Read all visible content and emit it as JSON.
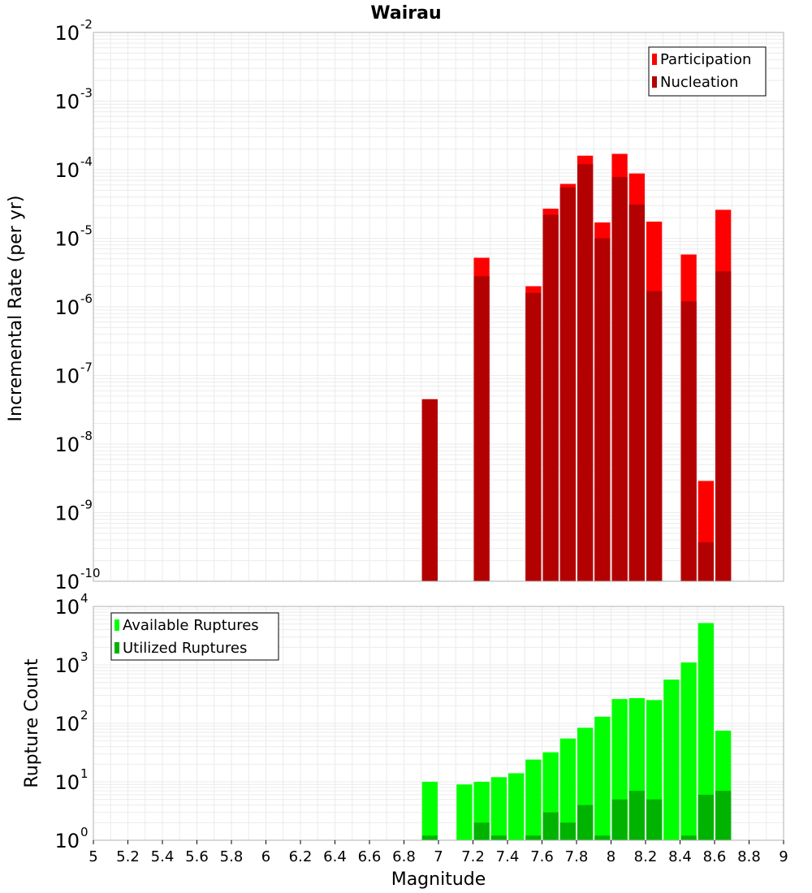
{
  "colors": {
    "participation": "#ff0000",
    "nucleation": "#b30000",
    "available": "#00ff00",
    "utilized": "#00b300",
    "grid": "#ebebeb",
    "frame": "#b0b0b0"
  },
  "chart_data": [
    {
      "type": "bar",
      "title": "Wairau",
      "xlabel": "",
      "ylabel": "Incremental Rate (per yr)",
      "yscale": "log",
      "ylim": [
        1e-10,
        0.01
      ],
      "xlim": [
        5,
        9
      ],
      "bin_width": 0.1,
      "grid": true,
      "legend_position": "top-right",
      "y_ticks": [
        {
          "base": "10",
          "exp": "-10"
        },
        {
          "base": "10",
          "exp": "-9"
        },
        {
          "base": "10",
          "exp": "-8"
        },
        {
          "base": "10",
          "exp": "-7"
        },
        {
          "base": "10",
          "exp": "-6"
        },
        {
          "base": "10",
          "exp": "-5"
        },
        {
          "base": "10",
          "exp": "-4"
        },
        {
          "base": "10",
          "exp": "-3"
        },
        {
          "base": "10",
          "exp": "-2"
        }
      ],
      "series": [
        {
          "name": "Participation",
          "x": [
            6.95,
            7.25,
            7.55,
            7.65,
            7.75,
            7.85,
            7.95,
            8.05,
            8.15,
            8.25,
            8.45,
            8.55,
            8.65
          ],
          "values": [
            4.5e-08,
            5.2e-06,
            2e-06,
            2.7e-05,
            6.2e-05,
            0.00016,
            1.7e-05,
            0.00017,
            8.8e-05,
            1.75e-05,
            5.8e-06,
            2.9e-09,
            2.6e-05
          ]
        },
        {
          "name": "Nucleation",
          "x": [
            6.95,
            7.25,
            7.55,
            7.65,
            7.75,
            7.85,
            7.95,
            8.05,
            8.15,
            8.25,
            8.45,
            8.55,
            8.65
          ],
          "values": [
            4.5e-08,
            2.8e-06,
            1.6e-06,
            2.2e-05,
            5.5e-05,
            0.00012,
            1e-05,
            7.8e-05,
            3.1e-05,
            1.7e-06,
            1.2e-06,
            3.7e-10,
            3.3e-06
          ]
        }
      ]
    },
    {
      "type": "bar",
      "title": "",
      "xlabel": "Magnitude",
      "ylabel": "Rupture Count",
      "yscale": "log",
      "ylim": [
        1,
        10000
      ],
      "xlim": [
        5,
        9
      ],
      "bin_width": 0.1,
      "grid": true,
      "legend_position": "top-left",
      "y_ticks": [
        {
          "base": "10",
          "exp": "0"
        },
        {
          "base": "10",
          "exp": "1"
        },
        {
          "base": "10",
          "exp": "2"
        },
        {
          "base": "10",
          "exp": "3"
        },
        {
          "base": "10",
          "exp": "4"
        }
      ],
      "x_tick_labels": [
        "5",
        "5.2",
        "5.4",
        "5.6",
        "5.8",
        "6",
        "6.2",
        "6.4",
        "6.6",
        "6.8",
        "7",
        "7.2",
        "7.4",
        "7.6",
        "7.8",
        "8",
        "8.2",
        "8.4",
        "8.6",
        "8.8",
        "9"
      ],
      "series": [
        {
          "name": "Available Ruptures",
          "x": [
            6.95,
            7.15,
            7.25,
            7.35,
            7.45,
            7.55,
            7.65,
            7.75,
            7.85,
            7.95,
            8.05,
            8.15,
            8.25,
            8.35,
            8.45,
            8.55,
            8.65
          ],
          "values": [
            10,
            9,
            10,
            12,
            14,
            24,
            32,
            55,
            84,
            130,
            260,
            270,
            250,
            560,
            1100,
            5200,
            75
          ]
        },
        {
          "name": "Utilized Ruptures",
          "x": [
            6.95,
            7.25,
            7.35,
            7.55,
            7.65,
            7.75,
            7.85,
            7.95,
            8.05,
            8.15,
            8.25,
            8.45,
            8.55,
            8.65
          ],
          "values": [
            1.2,
            2,
            1.2,
            1.2,
            3,
            2,
            4,
            1.2,
            5,
            7,
            5,
            1.2,
            6,
            7
          ]
        }
      ]
    }
  ]
}
